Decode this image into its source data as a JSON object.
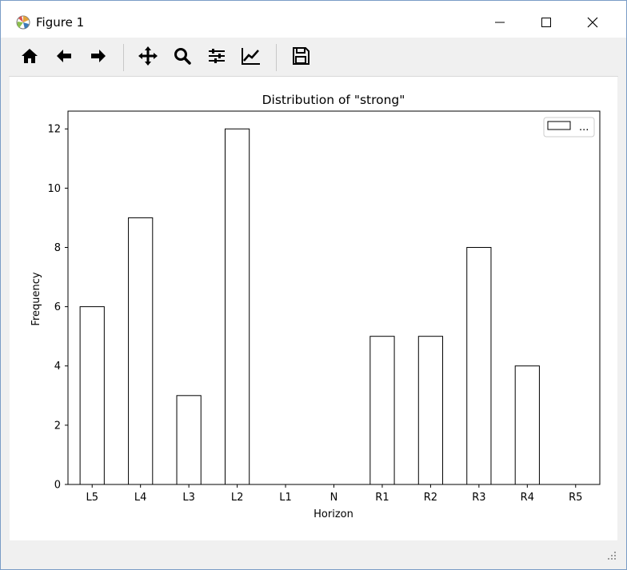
{
  "window": {
    "title": "Figure 1"
  },
  "toolbar": {
    "icons": [
      "home-icon",
      "back-icon",
      "forward-icon",
      "pan-icon",
      "zoom-icon",
      "configure-subplots-icon",
      "edit-axis-icon",
      "save-icon"
    ]
  },
  "chart_data": {
    "type": "bar",
    "title": "Distribution of \"strong\"",
    "xlabel": "Horizon",
    "ylabel": "Frequency",
    "categories": [
      "L5",
      "L4",
      "L3",
      "L2",
      "L1",
      "N",
      "R1",
      "R2",
      "R3",
      "R4",
      "R5"
    ],
    "values": [
      6,
      9,
      3,
      12,
      0,
      0,
      5,
      5,
      8,
      4,
      0
    ],
    "ylim": [
      0,
      12.6
    ],
    "yticks": [
      0,
      2,
      4,
      6,
      8,
      10,
      12
    ],
    "grid": false,
    "legend": {
      "position": "top-right",
      "entries": [
        "..."
      ]
    },
    "colors": {
      "bar_fill": "#ffffff",
      "bar_edge": "#000000"
    }
  }
}
